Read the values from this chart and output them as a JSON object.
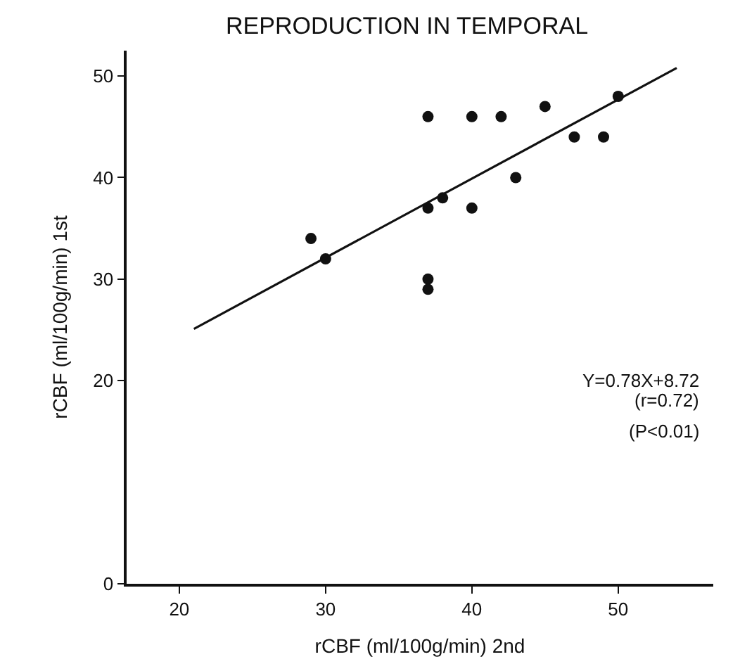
{
  "chart_data": {
    "type": "scatter",
    "title": "REPRODUCTION IN TEMPORAL",
    "xlabel": "rCBF (ml/100g/min) 2nd",
    "ylabel": "rCBF (ml/100g/min) 1st",
    "x": [
      29,
      30,
      37,
      37,
      37,
      37,
      38,
      40,
      40,
      42,
      43,
      45,
      47,
      49,
      50
    ],
    "series": [
      {
        "color": "#111111",
        "marker": "circle",
        "values": [
          34,
          32,
          46,
          37,
          30,
          29,
          38,
          46,
          37,
          46,
          40,
          47,
          44,
          44,
          48
        ]
      },
      {
        "type": "line",
        "color": "#111111",
        "x": [
          21,
          54
        ],
        "values": [
          25.1,
          50.8
        ]
      }
    ],
    "xlim": [
      16.4,
      56.5
    ],
    "ylim": [
      0,
      52.5
    ],
    "xticks": [
      20,
      30,
      40,
      50
    ],
    "yticks": [
      0,
      20,
      30,
      40,
      50
    ],
    "annotations": [
      "Y=0.78X+8.72",
      "(r=0.72)",
      "(P<0.01)"
    ]
  }
}
